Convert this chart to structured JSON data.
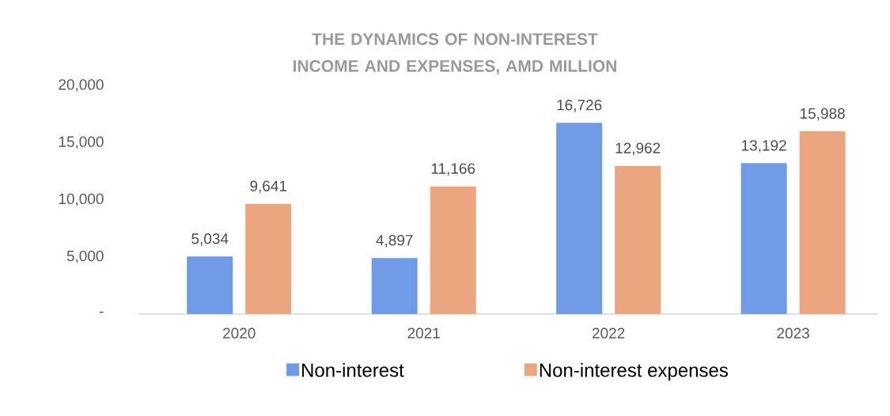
{
  "chart_data": {
    "type": "bar",
    "title": "THE DYNAMICS OF NON-INTEREST INCOME AND EXPENSES, AMD MILLION",
    "categories": [
      "2020",
      "2021",
      "2022",
      "2023"
    ],
    "series": [
      {
        "name": "Non-interest",
        "color": "#6f9be6",
        "values": [
          5034,
          4897,
          16726,
          13192
        ],
        "value_labels": [
          "5,034",
          "4,897",
          "16,726",
          "13,192"
        ]
      },
      {
        "name": "Non-interest expenses",
        "color": "#eba57f",
        "values": [
          9641,
          11166,
          12962,
          15988
        ],
        "value_labels": [
          "9,641",
          "11,166",
          "12,962",
          "15,988"
        ]
      }
    ],
    "ylim": [
      0,
      20000
    ],
    "yticks": [
      {
        "value": 0,
        "label": "-"
      },
      {
        "value": 5000,
        "label": "5,000"
      },
      {
        "value": 10000,
        "label": "10,000"
      },
      {
        "value": 15000,
        "label": "15,000"
      },
      {
        "value": 20000,
        "label": "20,000"
      }
    ],
    "grid": false,
    "legend": "bottom"
  }
}
